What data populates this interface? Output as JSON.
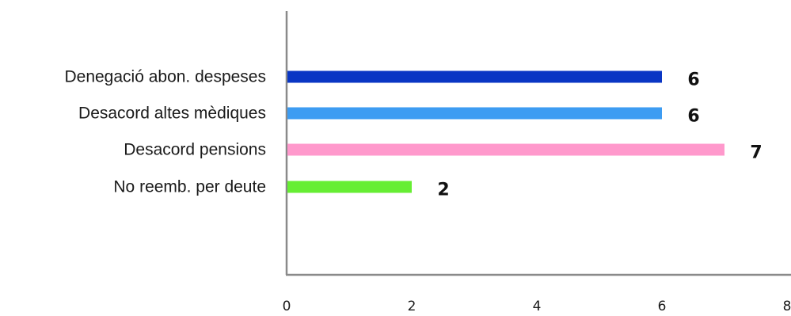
{
  "chart_data": {
    "type": "bar",
    "orientation": "horizontal",
    "categories": [
      "Denegació abon. despeses",
      "Desacord altes mèdiques",
      "Desacord pensions",
      "No reemb. per deute"
    ],
    "values": [
      6,
      6,
      7,
      2
    ],
    "value_labels": [
      "6",
      "6",
      "7",
      "2"
    ],
    "colors": [
      "#0a36c4",
      "#3d9cf2",
      "#ff99cc",
      "#66ee33"
    ],
    "xlim": [
      0,
      8
    ],
    "xticks": [
      "0",
      "2",
      "4",
      "6",
      "8"
    ],
    "grid": false,
    "legend": "none",
    "title": "",
    "xlabel": "",
    "ylabel": ""
  }
}
